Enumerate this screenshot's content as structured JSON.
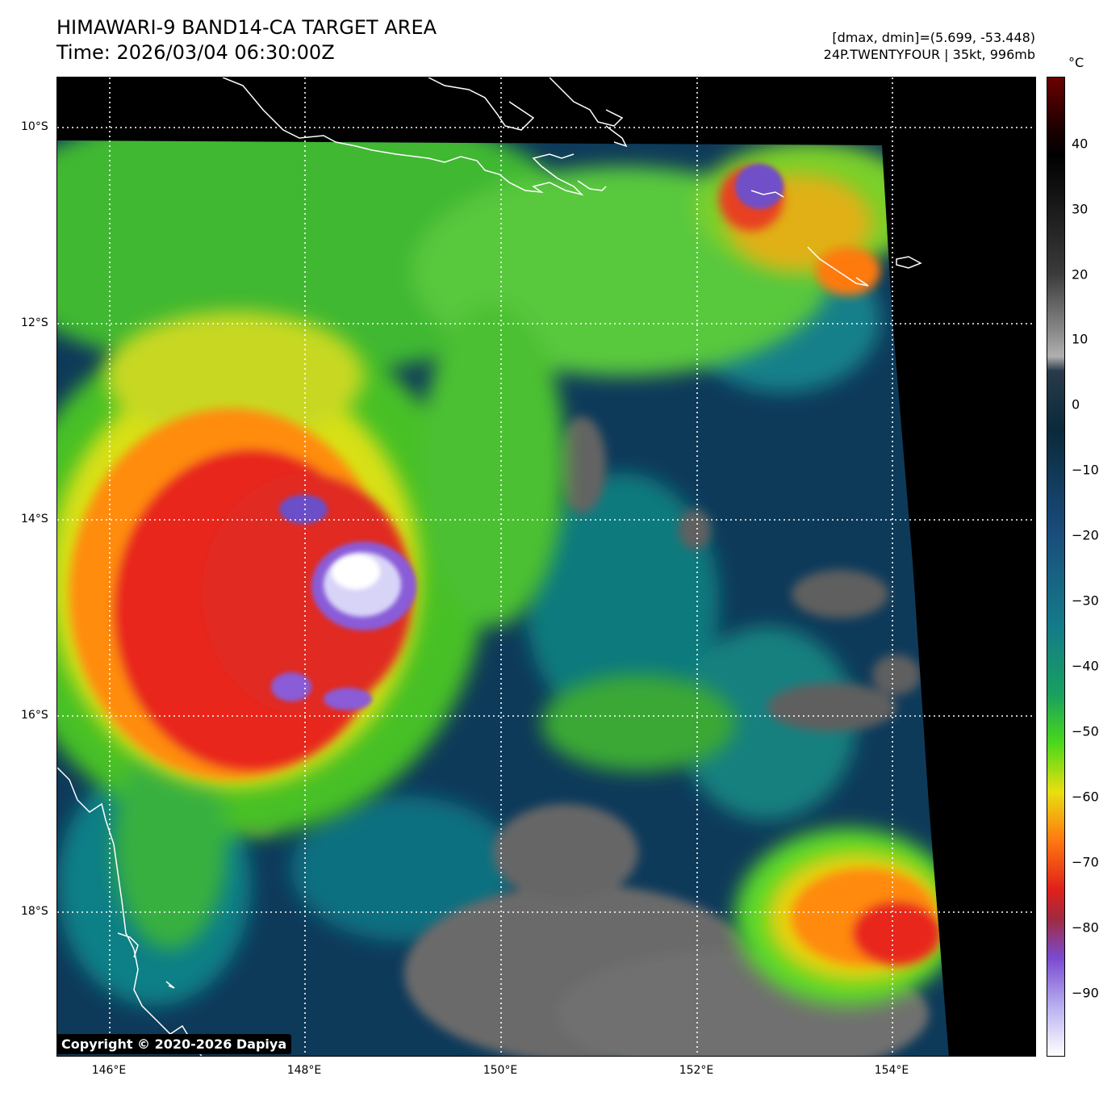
{
  "header": {
    "title": "HIMAWARI-9 BAND14-CA TARGET AREA",
    "time": "Time: 2026/03/04 06:30:00Z",
    "dminmax": "[dmax, dmin]=(5.699, -53.448)",
    "storm": "24P.TWENTYFOUR | 35kt, 996mb"
  },
  "map": {
    "lat_labels": [
      "10°S",
      "12°S",
      "14°S",
      "16°S",
      "18°S"
    ],
    "lon_labels": [
      "146°E",
      "148°E",
      "150°E",
      "152°E",
      "154°E"
    ],
    "gridlines": "dotted white"
  },
  "colorbar": {
    "unit": "°C",
    "ticks": [
      "40",
      "30",
      "20",
      "10",
      "0",
      "−10",
      "−20",
      "−30",
      "−40",
      "−50",
      "−60",
      "−70",
      "−80",
      "−90"
    ],
    "range": [
      -100,
      50
    ]
  },
  "copyright": "Copyright © 2020-2026 Dapiya",
  "colors": {
    "cloud_cold": "#ffffff",
    "purple": "#8a5cd8",
    "red": "#e8221a",
    "orange": "#ff8a10",
    "yellow": "#e8e010",
    "green": "#5ad820",
    "teal": "#108888",
    "navy": "#0e3a5a",
    "land_gray": "#6e6e6e"
  }
}
